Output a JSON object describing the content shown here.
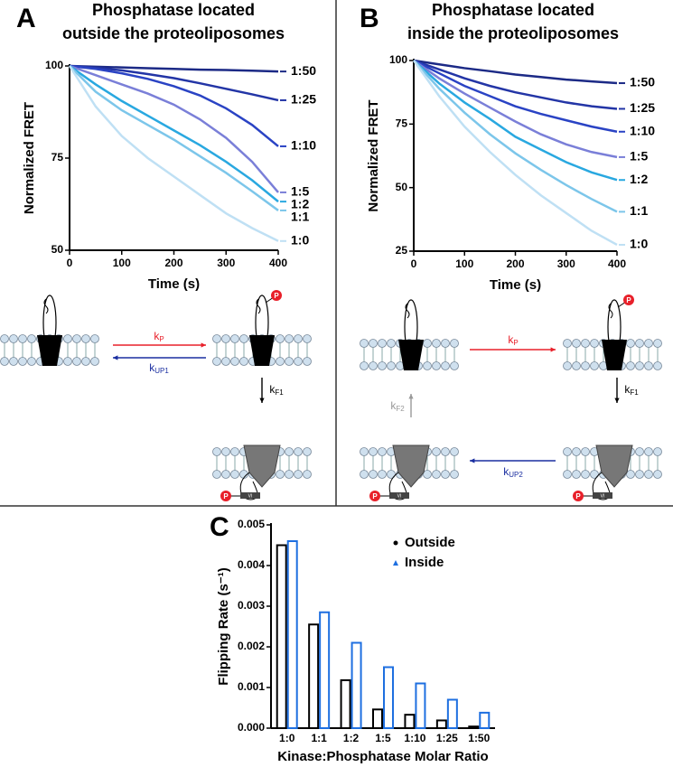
{
  "chart_data": [
    {
      "type": "line",
      "panel": "A",
      "title": [
        "Phosphatase located",
        "outside the proteoliposomes"
      ],
      "x_label": "Time (s)",
      "y_label": "Normalized FRET",
      "x": [
        0,
        50,
        100,
        150,
        200,
        250,
        300,
        350,
        400
      ],
      "xlim": [
        0,
        400
      ],
      "xticks": [
        0,
        100,
        200,
        300,
        400
      ],
      "ylim": [
        50,
        100
      ],
      "yticks": [
        50,
        75,
        100
      ],
      "series": [
        {
          "name": "1:50",
          "color": "#1c2a86",
          "values": [
            100,
            99.8,
            99.6,
            99.4,
            99.2,
            99,
            98.9,
            98.7,
            98.5
          ]
        },
        {
          "name": "1:25",
          "color": "#2335a6",
          "values": [
            100,
            99.5,
            98.8,
            97.8,
            96.7,
            95.3,
            93.8,
            92.3,
            90.7
          ]
        },
        {
          "name": "1:10",
          "color": "#2a43c4",
          "values": [
            100,
            99.2,
            98,
            96.5,
            94.5,
            92,
            88.5,
            84,
            78.2
          ]
        },
        {
          "name": "1:5",
          "color": "#7a7fd8",
          "values": [
            100,
            97.5,
            95,
            92.5,
            89.5,
            85.5,
            80.5,
            74,
            65.7
          ]
        },
        {
          "name": "1:2",
          "color": "#29a8e0",
          "values": [
            100,
            95,
            90.5,
            86.5,
            82.5,
            78.5,
            74,
            69,
            63.2
          ]
        },
        {
          "name": "1:1",
          "color": "#7cc6ea",
          "values": [
            100,
            93,
            88,
            84,
            80,
            75.5,
            71,
            66,
            60.8
          ]
        },
        {
          "name": "1:0",
          "color": "#bfe0f4",
          "values": [
            100,
            89,
            81,
            75,
            70,
            65,
            60,
            56,
            52.5
          ]
        }
      ]
    },
    {
      "type": "line",
      "panel": "B",
      "title": [
        "Phosphatase located",
        "inside the proteoliposomes"
      ],
      "x_label": "Time (s)",
      "y_label": "Normalized FRET",
      "x": [
        0,
        50,
        100,
        150,
        200,
        250,
        300,
        350,
        400
      ],
      "xlim": [
        0,
        400
      ],
      "xticks": [
        0,
        100,
        200,
        300,
        400
      ],
      "ylim": [
        25,
        100
      ],
      "yticks": [
        25,
        50,
        75,
        100
      ],
      "series": [
        {
          "name": "1:50",
          "color": "#1c2a86",
          "values": [
            100,
            98.5,
            97,
            95.8,
            94.5,
            93.5,
            92.5,
            91.8,
            91.1
          ]
        },
        {
          "name": "1:25",
          "color": "#2335a6",
          "values": [
            100,
            96.5,
            93,
            90,
            87.5,
            85.5,
            83.5,
            82,
            81
          ]
        },
        {
          "name": "1:10",
          "color": "#2a43c4",
          "values": [
            100,
            95,
            90,
            86,
            82,
            79,
            76.5,
            74,
            72
          ]
        },
        {
          "name": "1:5",
          "color": "#7a7fd8",
          "values": [
            100,
            93,
            87,
            81.5,
            76,
            71,
            67,
            64,
            62
          ]
        },
        {
          "name": "1:2",
          "color": "#29a8e0",
          "values": [
            100,
            91,
            83.5,
            77,
            70,
            65,
            60,
            56,
            53
          ]
        },
        {
          "name": "1:1",
          "color": "#7cc6ea",
          "values": [
            100,
            89,
            79.5,
            71,
            63.5,
            57,
            51,
            45.5,
            40.5
          ]
        },
        {
          "name": "1:0",
          "color": "#bfe0f4",
          "values": [
            100,
            86,
            74,
            64,
            55,
            47,
            40,
            33,
            27.5
          ]
        }
      ]
    },
    {
      "type": "bar",
      "panel": "C",
      "x_label": "Kinase:Phosphatase Molar Ratio",
      "y_label": "Flipping Rate (s⁻¹)",
      "categories": [
        "1:0",
        "1:1",
        "1:2",
        "1:5",
        "1:10",
        "1:25",
        "1:50"
      ],
      "ylim": [
        0,
        0.005
      ],
      "yticks": [
        {
          "value": 0,
          "label": "0.000"
        },
        {
          "value": 0.001,
          "label": "0.001"
        },
        {
          "value": 0.002,
          "label": "0.002"
        },
        {
          "value": 0.003,
          "label": "0.003"
        },
        {
          "value": 0.004,
          "label": "0.004"
        },
        {
          "value": 0.005,
          "label": "0.005"
        }
      ],
      "series": [
        {
          "name": "Outside",
          "color": "#000000",
          "values": [
            0.0045,
            0.00255,
            0.00118,
            0.00046,
            0.00033,
            0.00019,
            4e-05
          ]
        },
        {
          "name": "Inside",
          "color": "#1e6fe0",
          "values": [
            0.0046,
            0.00285,
            0.0021,
            0.0015,
            0.0011,
            0.0007,
            0.00038
          ]
        }
      ]
    }
  ],
  "diagrams": {
    "A": [
      {
        "k": "k",
        "sub": "P"
      },
      {
        "k": "k",
        "sub": "UP1"
      },
      {
        "k": "k",
        "sub": "F1"
      }
    ],
    "B": [
      {
        "k": "k",
        "sub": "P"
      },
      {
        "k": "k",
        "sub": "F1"
      },
      {
        "k": "k",
        "sub": "UP2"
      },
      {
        "k": "k",
        "sub": "F2"
      }
    ],
    "phospho_label": "P",
    "domain_label": "VI"
  }
}
